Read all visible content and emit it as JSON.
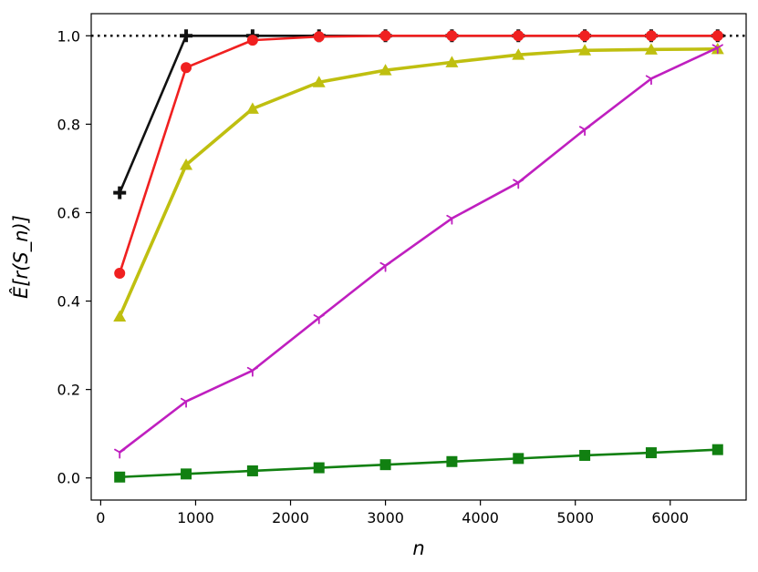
{
  "chart_data": {
    "type": "line",
    "title": "",
    "xlabel": "n",
    "ylabel": "Ê[r(S_n)]",
    "xlim": [
      -100,
      6800
    ],
    "ylim": [
      -0.05,
      1.05
    ],
    "x_ticks": [
      0,
      1000,
      2000,
      3000,
      4000,
      5000,
      6000
    ],
    "x_tick_labels": [
      "0",
      "1000",
      "2000",
      "3000",
      "4000",
      "5000",
      "6000"
    ],
    "y_ticks": [
      0.0,
      0.2,
      0.4,
      0.6,
      0.8,
      1.0
    ],
    "y_tick_labels": [
      "0.0",
      "0.2",
      "0.4",
      "0.6",
      "0.8",
      "1.0"
    ],
    "grid": false,
    "legend": "none",
    "reference_line": {
      "y": 1.0,
      "style": "dotted",
      "color": "#000000"
    },
    "x": [
      200,
      900,
      1600,
      2300,
      3000,
      3700,
      4400,
      5100,
      5800,
      6500
    ],
    "series": [
      {
        "color": "#111111",
        "marker": "plus",
        "values": [
          0.645,
          1.0,
          1.0,
          1.0,
          1.0,
          1.0,
          1.0,
          1.0,
          1.0,
          1.0
        ]
      },
      {
        "color": "#f02020",
        "marker": "circle",
        "values": [
          0.463,
          0.928,
          0.99,
          0.998,
          1.0,
          1.0,
          1.0,
          1.0,
          1.0,
          1.0
        ]
      },
      {
        "color": "#bfbf10",
        "marker": "triangle",
        "values": [
          0.365,
          0.708,
          0.835,
          0.895,
          0.922,
          0.94,
          0.957,
          0.967,
          0.969,
          0.97
        ]
      },
      {
        "color": "#bf1fbf",
        "marker": "tri",
        "values": [
          0.058,
          0.173,
          0.243,
          0.362,
          0.48,
          0.587,
          0.668,
          0.788,
          0.903,
          0.973
        ]
      },
      {
        "color": "#118011",
        "marker": "square",
        "values": [
          0.002,
          0.009,
          0.016,
          0.023,
          0.03,
          0.037,
          0.044,
          0.051,
          0.057,
          0.064
        ]
      }
    ]
  }
}
